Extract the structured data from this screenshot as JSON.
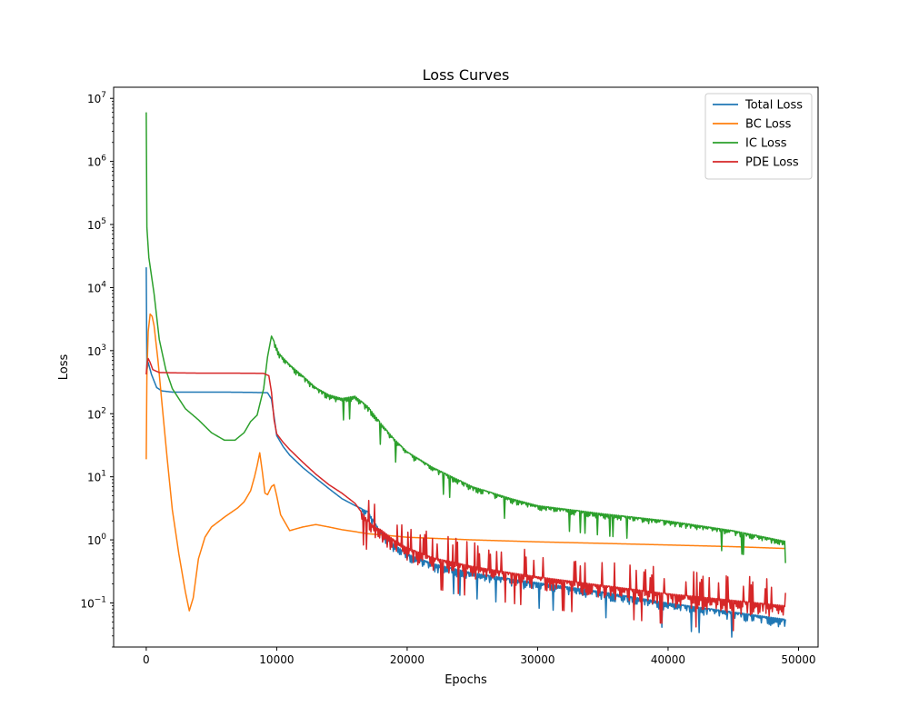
{
  "chart_data": {
    "type": "line",
    "title": "Loss Curves",
    "xlabel": "Epochs",
    "ylabel": "Loss",
    "xlim": [
      -2500,
      51500
    ],
    "ylim": [
      0.02,
      15000000
    ],
    "yscale": "log",
    "grid": false,
    "legend_position": "top-right",
    "xticks": [
      {
        "value": 0,
        "label": "0"
      },
      {
        "value": 10000,
        "label": "10000"
      },
      {
        "value": 20000,
        "label": "20000"
      },
      {
        "value": 30000,
        "label": "30000"
      },
      {
        "value": 40000,
        "label": "40000"
      },
      {
        "value": 50000,
        "label": "50000"
      }
    ],
    "yticks": [
      {
        "value": 0.1,
        "base": "10",
        "exp": "−1"
      },
      {
        "value": 1,
        "base": "10",
        "exp": "0"
      },
      {
        "value": 10,
        "base": "10",
        "exp": "1"
      },
      {
        "value": 100,
        "base": "10",
        "exp": "2"
      },
      {
        "value": 1000,
        "base": "10",
        "exp": "3"
      },
      {
        "value": 10000,
        "base": "10",
        "exp": "4"
      },
      {
        "value": 100000,
        "base": "10",
        "exp": "5"
      },
      {
        "value": 1000000,
        "base": "10",
        "exp": "6"
      },
      {
        "value": 10000000,
        "base": "10",
        "exp": "7"
      }
    ],
    "series": [
      {
        "name": "Total Loss",
        "color": "#1f77b4",
        "x": [
          0,
          50,
          150,
          400,
          800,
          1200,
          2000,
          4000,
          6000,
          8000,
          9300,
          9600,
          9800,
          10000,
          10500,
          11000,
          12000,
          13000,
          14000,
          15000,
          16000,
          17000,
          18000,
          19000,
          20000,
          22000,
          25000,
          28000,
          30000,
          35000,
          40000,
          45000,
          49000
        ],
        "y": [
          21000,
          480,
          650,
          420,
          260,
          230,
          220,
          220,
          220,
          218,
          215,
          170,
          90,
          45,
          30,
          22,
          14,
          9.5,
          6.5,
          4.5,
          3.5,
          2.8,
          1.3,
          0.85,
          0.6,
          0.42,
          0.3,
          0.24,
          0.21,
          0.15,
          0.1,
          0.072,
          0.055
        ],
        "noise": {
          "x_start": 16500,
          "lower_factor": 0.72
        }
      },
      {
        "name": "BC Loss",
        "color": "#ff7f0e",
        "x": [
          0,
          50,
          150,
          300,
          450,
          600,
          900,
          1200,
          1600,
          2000,
          2500,
          3000,
          3300,
          3600,
          4000,
          4500,
          5000,
          6000,
          7000,
          7500,
          8000,
          8300,
          8500,
          8700,
          8900,
          9100,
          9300,
          9600,
          9800,
          10000,
          10300,
          11000,
          11500,
          12000,
          13000,
          14000,
          15000,
          16000,
          17000,
          18000,
          20000,
          25000,
          30000,
          35000,
          40000,
          45000,
          49000
        ],
        "y": [
          19,
          400,
          2000,
          3800,
          3500,
          2500,
          700,
          150,
          20,
          3,
          0.6,
          0.15,
          0.075,
          0.12,
          0.5,
          1.1,
          1.6,
          2.3,
          3.2,
          4,
          6,
          10,
          15,
          24,
          12,
          5.5,
          5.2,
          7,
          7.5,
          5,
          2.5,
          1.4,
          1.5,
          1.6,
          1.75,
          1.6,
          1.45,
          1.35,
          1.25,
          1.2,
          1.1,
          1.0,
          0.93,
          0.88,
          0.83,
          0.78,
          0.73
        ],
        "noise": {
          "x_start": 0,
          "lower_factor": 1.0
        }
      },
      {
        "name": "IC Loss",
        "color": "#2ca02c",
        "x": [
          0,
          50,
          200,
          600,
          1000,
          1500,
          2000,
          3000,
          4000,
          5000,
          6000,
          6800,
          7500,
          8000,
          8500,
          9000,
          9300,
          9600,
          9800,
          10200,
          11000,
          12000,
          13000,
          14000,
          15000,
          16000,
          17000,
          18000,
          19000,
          20000,
          22000,
          25000,
          28000,
          30000,
          35000,
          40000,
          45000,
          49000
        ],
        "y": [
          6000000,
          90000,
          30000,
          8000,
          1500,
          500,
          250,
          120,
          80,
          50,
          38,
          38,
          50,
          75,
          95,
          250,
          800,
          1700,
          1400,
          900,
          600,
          400,
          260,
          200,
          175,
          190,
          130,
          70,
          40,
          25,
          14,
          7,
          4.5,
          3.5,
          2.6,
          2.0,
          1.4,
          0.95
        ],
        "noise": {
          "x_start": 9800,
          "lower_factor": 0.82
        }
      },
      {
        "name": "PDE Loss",
        "color": "#d62728",
        "x": [
          0,
          50,
          150,
          300,
          500,
          1000,
          2000,
          4000,
          6000,
          8000,
          9000,
          9400,
          9600,
          9800,
          10000,
          10500,
          11000,
          12000,
          13000,
          14000,
          15000,
          16000,
          17000,
          17500,
          18000,
          19000,
          20000,
          22000,
          25000,
          28000,
          30000,
          35000,
          40000,
          45000,
          49000
        ],
        "y": [
          420,
          600,
          750,
          650,
          500,
          450,
          445,
          440,
          440,
          438,
          435,
          400,
          220,
          80,
          48,
          35,
          27,
          17,
          11,
          7.5,
          5.5,
          3.8,
          2.0,
          1.6,
          1.45,
          1.0,
          0.75,
          0.52,
          0.38,
          0.3,
          0.26,
          0.19,
          0.14,
          0.11,
          0.09
        ],
        "noise": {
          "x_start": 16500,
          "lower_factor": 0.6
        }
      }
    ]
  }
}
